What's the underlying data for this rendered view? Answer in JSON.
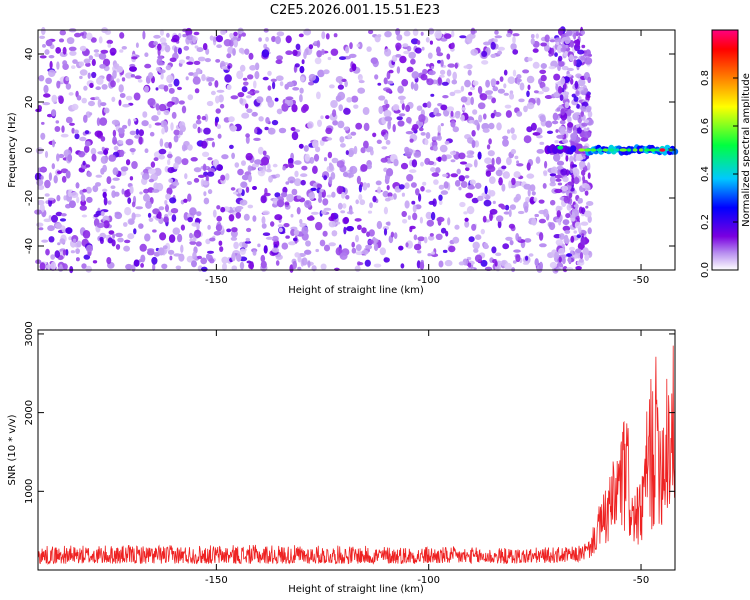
{
  "figure": {
    "title": "C2E5.2026.001.15.51.E23"
  },
  "chart_data": [
    {
      "type": "heatmap",
      "title": "C2E5.2026.001.15.51.E23",
      "xlabel": "Height of straight line (km)",
      "ylabel": "Frequency (Hz)",
      "xlim": [
        -192,
        -42
      ],
      "ylim": [
        -50,
        50
      ],
      "x_ticks": [
        -150,
        -100,
        -50
      ],
      "y_ticks": [
        -40,
        -20,
        0,
        20,
        40
      ],
      "grid": false,
      "noise_region": {
        "x_range": [
          -192,
          -62
        ],
        "y_range": [
          -50,
          50
        ],
        "typical_amplitude": [
          0.05,
          0.2
        ]
      },
      "signal_band": {
        "x_range": [
          -72,
          -42
        ],
        "center_frequency_hz": 0,
        "half_width_hz": 2,
        "typical_amplitude": [
          0.3,
          0.6
        ],
        "peak": {
          "x": -45,
          "y": 0,
          "amplitude": 0.95
        }
      },
      "colorbar": {
        "label": "Normalized spectral amplitude",
        "range": [
          0,
          1
        ],
        "ticks": [
          "0.0",
          "0.2",
          "0.4",
          "0.6",
          "0.8"
        ],
        "tick_values": [
          0.0,
          0.2,
          0.4,
          0.6,
          0.8
        ],
        "colors": [
          "#ffffff",
          "#7a00e0",
          "#0000ff",
          "#00c8ff",
          "#00ff40",
          "#ffff00",
          "#ff8000",
          "#ff0000",
          "#ff0080"
        ]
      }
    },
    {
      "type": "line",
      "xlabel": "Height of straight line (km)",
      "ylabel": "SNR (10 * v/v)",
      "xlim": [
        -192,
        -42
      ],
      "ylim": [
        0,
        3050
      ],
      "x_ticks": [
        -150,
        -100,
        -50
      ],
      "y_ticks": [
        1000,
        2000,
        3000
      ],
      "grid": false,
      "series": [
        {
          "name": "SNR",
          "color": "#ee2222",
          "envelope": {
            "x": [
              -192,
              -140,
              -100,
              -80,
              -65,
              -62,
              -60,
              -58,
              -56,
              -54,
              -53,
              -52,
              -50,
              -48,
              -46,
              -45,
              -44,
              -43,
              -42
            ],
            "low": [
              80,
              80,
              80,
              80,
              100,
              150,
              250,
              300,
              350,
              400,
              350,
              300,
              300,
              400,
              600,
              500,
              450,
              500,
              800
            ],
            "high": [
              310,
              320,
              300,
              280,
              300,
              400,
              800,
              1100,
              1500,
              2000,
              1900,
              1000,
              1100,
              2500,
              2800,
              2100,
              3050,
              2800,
              3000
            ]
          }
        }
      ]
    }
  ]
}
